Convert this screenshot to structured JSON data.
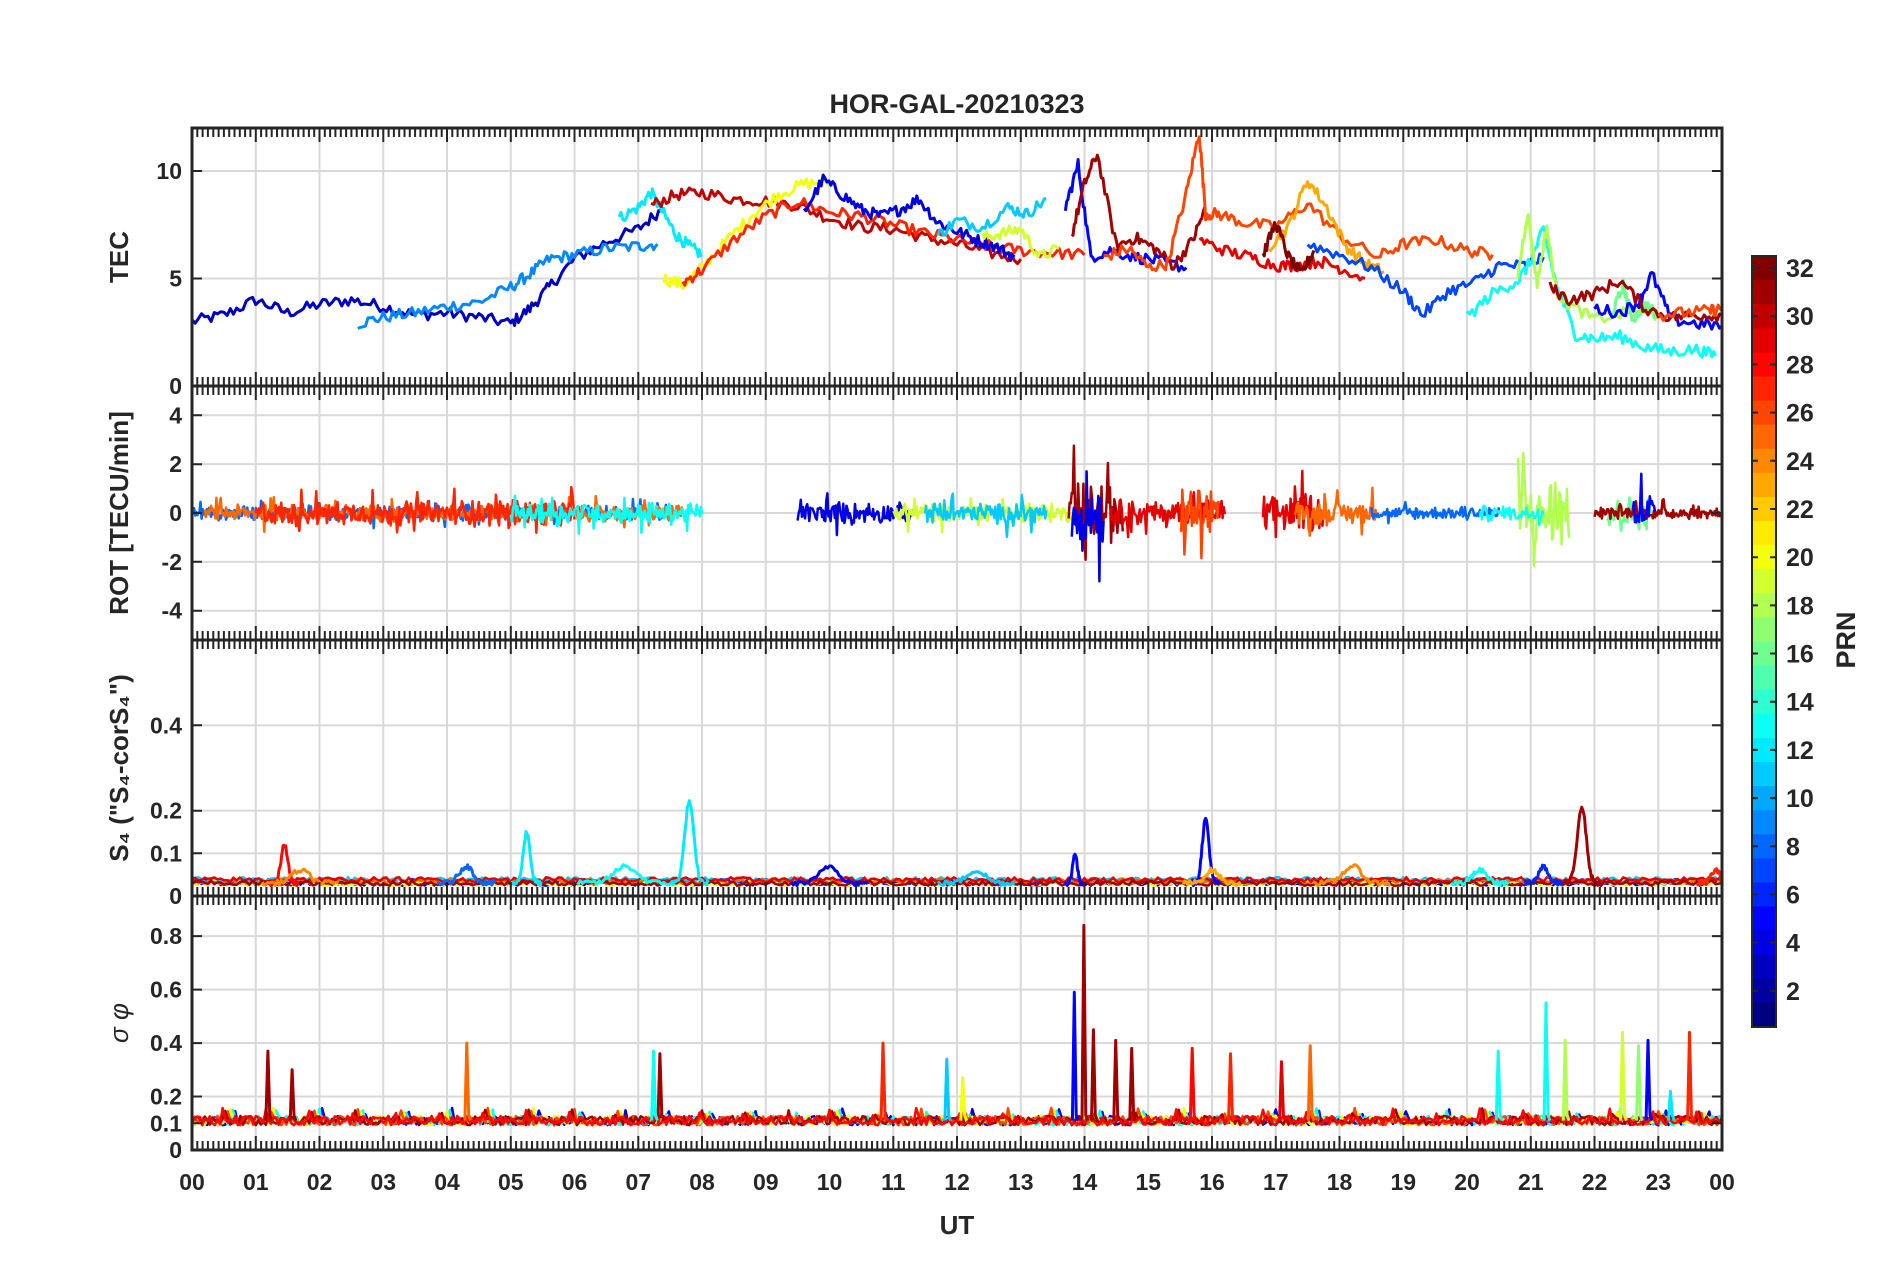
{
  "chart_data": {
    "type": "line",
    "title": "HOR-GAL-20210323",
    "xlabel": "UT",
    "x_ticks": [
      "00",
      "01",
      "02",
      "03",
      "04",
      "05",
      "06",
      "07",
      "08",
      "09",
      "10",
      "11",
      "12",
      "13",
      "14",
      "15",
      "16",
      "17",
      "18",
      "19",
      "20",
      "21",
      "22",
      "23",
      "00"
    ],
    "xlim": [
      0,
      24
    ],
    "colorbar": {
      "label": "PRN",
      "min": 1,
      "max": 32,
      "ticks": [
        "2",
        "4",
        "6",
        "8",
        "10",
        "12",
        "14",
        "16",
        "18",
        "20",
        "22",
        "24",
        "26",
        "28",
        "30",
        "32"
      ]
    },
    "panels": [
      {
        "key": "tec",
        "ylabel": "TEC",
        "ylim": [
          0,
          12
        ],
        "yticks": [
          0,
          5,
          10
        ],
        "ytick_labels": [
          "0",
          "5",
          "10"
        ],
        "series": [
          {
            "prn": 3,
            "x": [
              0,
              0.5,
              1,
              1.5,
              2,
              2.5,
              3,
              3.5,
              4,
              4.5,
              5,
              5.3,
              5.6,
              6,
              6.5,
              7,
              7.4
            ],
            "y": [
              3.0,
              3.3,
              4.0,
              3.4,
              3.8,
              4.0,
              3.7,
              3.3,
              3.4,
              3.2,
              2.9,
              3.6,
              4.6,
              5.9,
              6.7,
              7.3,
              8.3
            ]
          },
          {
            "prn": 9,
            "x": [
              2.6,
              3,
              3.5,
              4,
              4.5,
              5,
              5.3,
              5.6,
              6,
              6.5,
              7,
              7.3
            ],
            "y": [
              2.9,
              3.2,
              3.4,
              3.7,
              3.9,
              4.6,
              5.2,
              5.9,
              6.1,
              6.4,
              6.5,
              6.6
            ]
          },
          {
            "prn": 12,
            "x": [
              6.7,
              7,
              7.2,
              7.4,
              7.6,
              7.8,
              8.0
            ],
            "y": [
              7.8,
              8.3,
              9.0,
              8.0,
              7.0,
              6.5,
              6.1
            ]
          },
          {
            "prn": 30,
            "x": [
              7.2,
              7.6,
              8,
              8.5,
              9,
              9.5,
              10,
              10.5,
              11,
              11.5,
              12,
              12.5,
              13
            ],
            "y": [
              8.4,
              8.9,
              9.0,
              8.7,
              8.6,
              8.4,
              7.8,
              7.4,
              7.3,
              6.9,
              6.6,
              6.2,
              5.9
            ]
          },
          {
            "prn": 20,
            "x": [
              7.4,
              7.7,
              8,
              8.4,
              8.8,
              9.2,
              9.6,
              10.0
            ],
            "y": [
              5.0,
              4.7,
              5.5,
              6.8,
              8.0,
              8.9,
              9.4,
              9.5
            ]
          },
          {
            "prn": 27,
            "x": [
              7.7,
              8,
              8.5,
              9,
              9.5,
              10,
              10.5,
              11,
              11.5,
              12,
              12.5,
              13,
              13.5,
              14
            ],
            "y": [
              4.8,
              5.4,
              6.8,
              7.9,
              8.6,
              8.1,
              7.9,
              7.5,
              7.1,
              6.8,
              6.5,
              6.3,
              6.2,
              6.1
            ]
          },
          {
            "prn": 4,
            "x": [
              9.6,
              9.9,
              10.2,
              10.5,
              10.8,
              11.1,
              11.4,
              11.7,
              12.0,
              12.3,
              12.6,
              12.9
            ],
            "y": [
              8.1,
              9.6,
              8.9,
              8.2,
              7.9,
              8.2,
              8.7,
              7.6,
              7.2,
              6.8,
              6.5,
              6.0
            ]
          },
          {
            "prn": 11,
            "x": [
              11.7,
              12.0,
              12.4,
              12.8,
              13.1,
              13.4
            ],
            "y": [
              7.0,
              7.7,
              7.4,
              8.3,
              8.0,
              8.7
            ]
          },
          {
            "prn": 19,
            "x": [
              12.4,
              12.7,
              13.0,
              13.3,
              13.6
            ],
            "y": [
              6.9,
              7.1,
              7.3,
              6.0,
              6.4
            ]
          },
          {
            "prn": 5,
            "x": [
              13.7,
              13.9,
              14.1,
              14.4,
              14.8,
              15.2,
              15.6
            ],
            "y": [
              8.3,
              10.3,
              6.0,
              6.3,
              6.0,
              5.8,
              5.5
            ]
          },
          {
            "prn": 31,
            "x": [
              13.8,
              14.0,
              14.2,
              14.5,
              14.8,
              15.1,
              15.4,
              15.7,
              15.9
            ],
            "y": [
              7.0,
              9.4,
              10.8,
              6.5,
              6.9,
              6.4,
              5.6,
              6.8,
              8.3
            ]
          },
          {
            "prn": 26,
            "x": [
              14.3,
              14.7,
              15.0,
              15.3,
              15.6,
              15.8,
              15.9,
              16.1,
              16.5,
              17.0,
              17.5,
              18.0,
              18.6,
              19.0,
              19.5,
              20.0,
              20.4
            ],
            "y": [
              6.0,
              6.4,
              5.5,
              5.7,
              9.0,
              11.8,
              8.0,
              8.0,
              7.6,
              7.4,
              8.5,
              7.0,
              6.0,
              6.6,
              6.8,
              6.3,
              6.1
            ]
          },
          {
            "prn": 23,
            "x": [
              16.9,
              17.2,
              17.5,
              17.8,
              18.1,
              18.4,
              18.7
            ],
            "y": [
              6.5,
              7.4,
              9.6,
              8.3,
              6.5,
              5.7,
              5.3
            ]
          },
          {
            "prn": 29,
            "x": [
              15.8,
              16.2,
              16.6,
              17.0,
              17.3,
              17.7,
              18.0,
              18.4
            ],
            "y": [
              6.8,
              6.3,
              6.0,
              5.6,
              5.6,
              5.8,
              5.5,
              5.0
            ]
          },
          {
            "prn": 32,
            "x": [
              16.8,
              17.0,
              17.2,
              17.4,
              17.6
            ],
            "y": [
              6.1,
              7.6,
              6.0,
              5.2,
              6.3
            ]
          },
          {
            "prn": 7,
            "x": [
              17.5,
              18.0,
              18.5,
              19.0,
              19.3,
              19.7,
              20.1,
              20.5,
              20.9,
              21.2
            ],
            "y": [
              6.6,
              6.1,
              5.5,
              4.4,
              3.3,
              4.4,
              4.8,
              5.6,
              5.6,
              6.0
            ]
          },
          {
            "prn": 13,
            "x": [
              20.0,
              20.4,
              20.8,
              21.0,
              21.2,
              21.4,
              21.7,
              22.0,
              22.4,
              22.8,
              23.2,
              23.6,
              23.9
            ],
            "y": [
              3.2,
              4.3,
              4.9,
              5.8,
              7.3,
              4.7,
              2.4,
              2.2,
              2.3,
              1.8,
              1.6,
              1.7,
              1.4
            ]
          },
          {
            "prn": 18,
            "x": [
              20.8,
              20.95,
              21.1,
              21.25,
              21.4,
              21.6,
              22.0,
              22.5,
              23.0
            ],
            "y": [
              5.2,
              8.1,
              4.8,
              7.4,
              4.4,
              3.8,
              3.1,
              3.4,
              3.3
            ]
          },
          {
            "prn": 16,
            "x": [
              22.3,
              22.45,
              22.6,
              22.8,
              23.0
            ],
            "y": [
              3.5,
              4.7,
              3.1,
              3.8,
              3.2
            ]
          },
          {
            "prn": 5,
            "x": [
              22.0,
              22.4,
              22.7,
              22.9,
              23.2,
              23.6,
              24.0
            ],
            "y": [
              3.6,
              3.4,
              3.9,
              5.2,
              3.1,
              2.9,
              2.8
            ]
          },
          {
            "prn": 31,
            "x": [
              21.3,
              21.6,
              22.0,
              22.4,
              22.8,
              23.2,
              23.6,
              24.0
            ],
            "y": [
              4.6,
              4.0,
              4.3,
              4.9,
              3.6,
              3.2,
              3.3,
              3.3
            ]
          },
          {
            "prn": 26,
            "x": [
              23.0,
              23.4,
              23.8,
              24.0
            ],
            "y": [
              3.3,
              3.4,
              3.5,
              3.6
            ]
          }
        ]
      },
      {
        "key": "rot",
        "ylabel": "ROT [TECU/min]",
        "ylim": [
          -5.2,
          5.2
        ],
        "yticks": [
          -4,
          -2,
          0,
          2,
          4
        ],
        "ytick_labels": [
          "-4",
          "-2",
          "0",
          "2",
          "4"
        ],
        "bursts": [
          {
            "prn": 8,
            "x0": 0.0,
            "x1": 7.5,
            "amp": 0.7
          },
          {
            "prn": 25,
            "x0": 0.2,
            "x1": 7.7,
            "amp": 0.8
          },
          {
            "prn": 27,
            "x0": 1.0,
            "x1": 6.0,
            "amp": 1.2
          },
          {
            "prn": 13,
            "x0": 5.0,
            "x1": 8.0,
            "amp": 1.0
          },
          {
            "prn": 4,
            "x0": 9.5,
            "x1": 11.3,
            "amp": 1.0
          },
          {
            "prn": 19,
            "x0": 11.0,
            "x1": 13.8,
            "amp": 0.9
          },
          {
            "prn": 11,
            "x0": 11.5,
            "x1": 13.4,
            "amp": 1.0
          },
          {
            "prn": 31,
            "x0": 13.75,
            "x1": 14.6,
            "amp": 2.8
          },
          {
            "prn": 4,
            "x0": 13.8,
            "x1": 14.3,
            "amp": 3.5
          },
          {
            "prn": 29,
            "x0": 14.4,
            "x1": 16.2,
            "amp": 1.3
          },
          {
            "prn": 26,
            "x0": 15.5,
            "x1": 16.1,
            "amp": 2.5
          },
          {
            "prn": 29,
            "x0": 16.8,
            "x1": 17.8,
            "amp": 1.8
          },
          {
            "prn": 25,
            "x0": 17.3,
            "x1": 18.6,
            "amp": 1.2
          },
          {
            "prn": 8,
            "x0": 18.5,
            "x1": 20.5,
            "amp": 0.6
          },
          {
            "prn": 18,
            "x0": 20.8,
            "x1": 21.6,
            "amp": 3.5
          },
          {
            "prn": 13,
            "x0": 20.2,
            "x1": 21.2,
            "amp": 0.7
          },
          {
            "prn": 16,
            "x0": 22.2,
            "x1": 22.9,
            "amp": 1.6
          },
          {
            "prn": 31,
            "x0": 22.0,
            "x1": 24.0,
            "amp": 0.6
          },
          {
            "prn": 5,
            "x0": 22.6,
            "x1": 22.95,
            "amp": 2.0
          }
        ]
      },
      {
        "key": "s4",
        "ylabel": "S₄ (\"S₄-corS₄\")",
        "ylim": [
          0,
          0.6
        ],
        "yticks": [
          0,
          0.1,
          0.2,
          0.4
        ],
        "ytick_labels": [
          "0",
          "0.1",
          "0.2",
          "0.4"
        ],
        "baseline": 0.03,
        "peaks": [
          {
            "prn": 28,
            "x": 1.45,
            "y": 0.12,
            "w": 0.15
          },
          {
            "prn": 24,
            "x": 1.7,
            "y": 0.06,
            "w": 0.4
          },
          {
            "prn": 8,
            "x": 4.3,
            "y": 0.07,
            "w": 0.3
          },
          {
            "prn": 12,
            "x": 5.25,
            "y": 0.15,
            "w": 0.15
          },
          {
            "prn": 13,
            "x": 6.8,
            "y": 0.07,
            "w": 0.5
          },
          {
            "prn": 12,
            "x": 7.8,
            "y": 0.22,
            "w": 0.2
          },
          {
            "prn": 4,
            "x": 10.0,
            "y": 0.07,
            "w": 0.4
          },
          {
            "prn": 11,
            "x": 12.3,
            "y": 0.06,
            "w": 0.4
          },
          {
            "prn": 5,
            "x": 13.85,
            "y": 0.1,
            "w": 0.1
          },
          {
            "prn": 5,
            "x": 15.9,
            "y": 0.18,
            "w": 0.15
          },
          {
            "prn": 23,
            "x": 16.0,
            "y": 0.06,
            "w": 0.3
          },
          {
            "prn": 24,
            "x": 18.2,
            "y": 0.07,
            "w": 0.4
          },
          {
            "prn": 13,
            "x": 20.2,
            "y": 0.06,
            "w": 0.3
          },
          {
            "prn": 31,
            "x": 21.8,
            "y": 0.21,
            "w": 0.2
          },
          {
            "prn": 6,
            "x": 21.2,
            "y": 0.07,
            "w": 0.2
          },
          {
            "prn": 27,
            "x": 23.9,
            "y": 0.06,
            "w": 0.2
          }
        ]
      },
      {
        "key": "sigma",
        "ylabel": "σ φ",
        "ylim": [
          0,
          0.95
        ],
        "yticks": [
          0,
          0.1,
          0.2,
          0.4,
          0.6,
          0.8
        ],
        "ytick_labels": [
          "0",
          "0.1",
          "0.2",
          "0.4",
          "0.6",
          "0.8"
        ],
        "baseline": 0.11,
        "spikes": [
          {
            "prn": 31,
            "x": 1.2,
            "y": 0.37
          },
          {
            "prn": 31,
            "x": 1.58,
            "y": 0.3
          },
          {
            "prn": 25,
            "x": 4.32,
            "y": 0.4
          },
          {
            "prn": 31,
            "x": 7.35,
            "y": 0.36
          },
          {
            "prn": 13,
            "x": 7.25,
            "y": 0.37
          },
          {
            "prn": 27,
            "x": 10.85,
            "y": 0.4
          },
          {
            "prn": 11,
            "x": 11.85,
            "y": 0.34
          },
          {
            "prn": 20,
            "x": 12.1,
            "y": 0.27
          },
          {
            "prn": 5,
            "x": 13.85,
            "y": 0.59
          },
          {
            "prn": 31,
            "x": 14.0,
            "y": 0.84
          },
          {
            "prn": 31,
            "x": 14.15,
            "y": 0.45
          },
          {
            "prn": 31,
            "x": 14.5,
            "y": 0.41
          },
          {
            "prn": 31,
            "x": 14.75,
            "y": 0.38
          },
          {
            "prn": 28,
            "x": 15.7,
            "y": 0.38
          },
          {
            "prn": 27,
            "x": 16.3,
            "y": 0.36
          },
          {
            "prn": 29,
            "x": 17.1,
            "y": 0.33
          },
          {
            "prn": 25,
            "x": 17.55,
            "y": 0.39
          },
          {
            "prn": 13,
            "x": 20.5,
            "y": 0.37
          },
          {
            "prn": 13,
            "x": 21.25,
            "y": 0.55
          },
          {
            "prn": 18,
            "x": 21.55,
            "y": 0.41
          },
          {
            "prn": 19,
            "x": 22.45,
            "y": 0.44
          },
          {
            "prn": 17,
            "x": 22.7,
            "y": 0.39
          },
          {
            "prn": 5,
            "x": 22.85,
            "y": 0.41
          },
          {
            "prn": 27,
            "x": 23.5,
            "y": 0.44
          },
          {
            "prn": 12,
            "x": 23.2,
            "y": 0.22
          }
        ]
      }
    ]
  }
}
